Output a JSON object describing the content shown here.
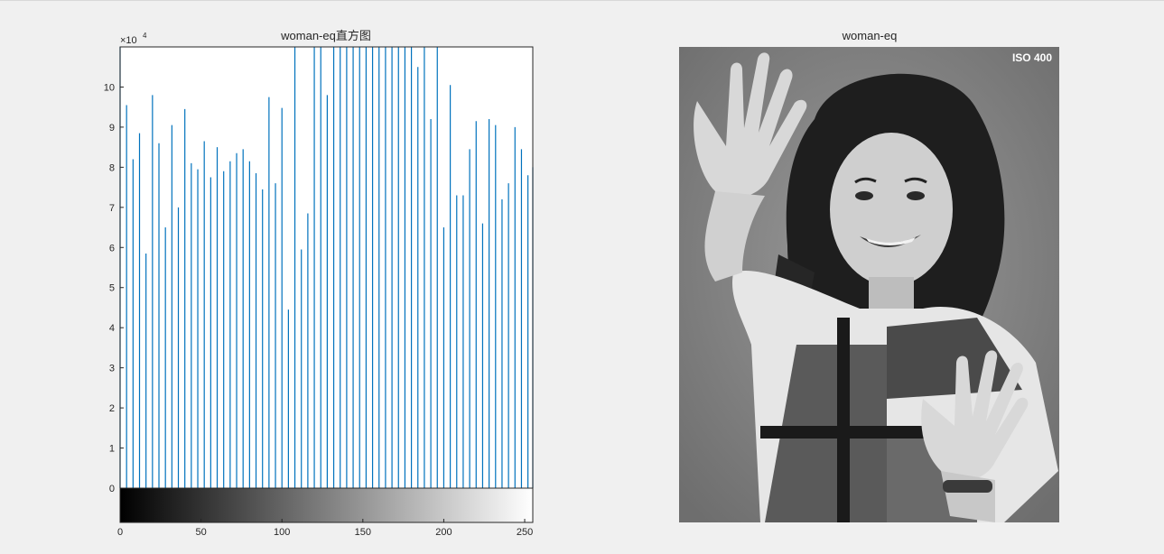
{
  "chart_data": [
    {
      "type": "bar",
      "title": "woman-eq直方图",
      "xlim": [
        0,
        255
      ],
      "ylim": [
        0,
        110000
      ],
      "exponent_label": "×10",
      "exponent_power": "4",
      "x_ticks": [
        "0",
        "50",
        "100",
        "150",
        "200",
        "250"
      ],
      "x_tick_values": [
        0,
        50,
        100,
        150,
        200,
        250
      ],
      "y_ticks": [
        "0",
        "1",
        "2",
        "3",
        "4",
        "5",
        "6",
        "7",
        "8",
        "9",
        "10"
      ],
      "y_tick_values": [
        0,
        10000,
        20000,
        30000,
        40000,
        50000,
        60000,
        70000,
        80000,
        90000,
        100000
      ],
      "colorbar": "grayscale 0-255",
      "bar_color": "#0072BD",
      "bins": [
        0,
        4,
        8,
        12,
        16,
        20,
        24,
        28,
        32,
        36,
        40,
        44,
        48,
        52,
        56,
        60,
        64,
        68,
        72,
        76,
        80,
        84,
        88,
        92,
        96,
        100,
        104,
        108,
        112,
        116,
        120,
        124,
        128,
        132,
        136,
        140,
        144,
        148,
        152,
        156,
        160,
        164,
        168,
        172,
        176,
        180,
        184,
        188,
        192,
        196,
        200,
        204,
        208,
        212,
        216,
        220,
        224,
        228,
        232,
        236,
        240,
        244,
        248,
        252,
        255
      ],
      "values": [
        110000,
        95500,
        82000,
        88500,
        58500,
        98000,
        86000,
        65000,
        90500,
        70000,
        94500,
        81000,
        79500,
        86500,
        77500,
        85000,
        79000,
        81500,
        83500,
        84500,
        81500,
        78500,
        74500,
        97500,
        76000,
        94800,
        44500,
        110000,
        59500,
        68500,
        110000,
        110000,
        98000,
        110000,
        110000,
        110000,
        110000,
        110000,
        110000,
        110000,
        110000,
        110000,
        110000,
        110000,
        110000,
        110000,
        105000,
        110000,
        92000,
        110000,
        65000,
        100500,
        73000,
        73000,
        84500,
        91500,
        66000,
        92000,
        90500,
        72000,
        76000,
        90000,
        84500,
        78000,
        80000
      ]
    }
  ],
  "image_panel": {
    "title": "woman-eq",
    "watermark": "ISO 400"
  }
}
